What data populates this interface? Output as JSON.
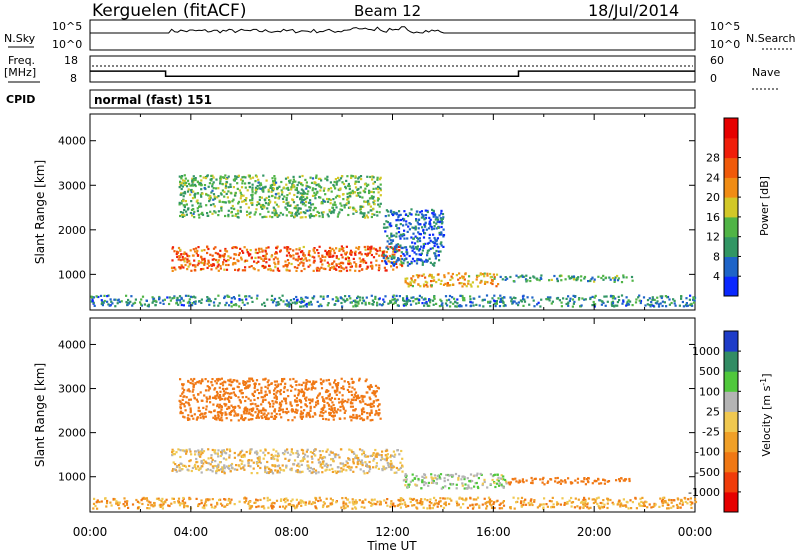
{
  "header": {
    "station": "Kerguelen (fitACF)",
    "beam": "Beam 12",
    "date": "18/Jul/2014"
  },
  "top_panels": {
    "nsky": {
      "label": "N.Sky",
      "ticks": [
        "10^5",
        "10^0"
      ]
    },
    "nsearch": {
      "label": "N.Search",
      "ticks": [
        "10^5",
        "10^0"
      ]
    },
    "freq": {
      "label_line1": "Freq.",
      "label_line2": "[MHz]",
      "ticks": [
        "18",
        "8"
      ],
      "values": [
        12.2,
        10.2,
        12.2
      ]
    },
    "nave": {
      "label": "Nave",
      "ticks": [
        "60",
        "0"
      ],
      "value": 34
    },
    "cpid": {
      "label": "CPID",
      "value": "normal (fast) 151"
    }
  },
  "chart_data": [
    {
      "type": "heatmap",
      "name": "power",
      "title": "",
      "xlabel": "Time UT",
      "ylabel": "Slant Range [km]",
      "xlim": [
        0,
        24
      ],
      "ylim": [
        200,
        4600
      ],
      "x_ticks": [
        "00:00",
        "04:00",
        "08:00",
        "12:00",
        "16:00",
        "20:00",
        "00:00"
      ],
      "y_ticks": [
        "1000",
        "2000",
        "3000",
        "4000"
      ],
      "colorbar": {
        "label": "Power [dB]",
        "ticks": [
          "4",
          "8",
          "12",
          "16",
          "20",
          "24",
          "28"
        ],
        "colors": [
          "#0a28ff",
          "#1e64c8",
          "#329664",
          "#50b446",
          "#d2c828",
          "#f08c14",
          "#f05a0a",
          "#f01e0a",
          "#e60000"
        ]
      },
      "regions": [
        {
          "t": [
            3.2,
            12.4
          ],
          "range": [
            1100,
            1650
          ],
          "level": 22
        },
        {
          "t": [
            12.4,
            16.2
          ],
          "range": [
            750,
            1050
          ],
          "level": 18
        },
        {
          "t": [
            16.2,
            21.5
          ],
          "range": [
            850,
            1000
          ],
          "level": 10
        },
        {
          "t": [
            3.5,
            11.5
          ],
          "range": [
            2300,
            3250
          ],
          "level": 12
        },
        {
          "t": [
            11.6,
            14.0
          ],
          "range": [
            1200,
            2500
          ],
          "level": 6
        },
        {
          "t": [
            0,
            24
          ],
          "range": [
            300,
            550
          ],
          "level": 8
        }
      ]
    },
    {
      "type": "heatmap",
      "name": "velocity",
      "title": "",
      "xlabel": "Time UT",
      "ylabel": "Slant Range [km]",
      "xlim": [
        0,
        24
      ],
      "ylim": [
        200,
        4600
      ],
      "x_ticks": [
        "00:00",
        "04:00",
        "08:00",
        "12:00",
        "16:00",
        "20:00",
        "00:00"
      ],
      "y_ticks": [
        "1000",
        "2000",
        "3000",
        "4000"
      ],
      "colorbar": {
        "label": "Velocity [m s^-1]",
        "ticks": [
          "1000",
          "500",
          "100",
          "25",
          "-25",
          "-100",
          "-500",
          "-1000"
        ],
        "colors": [
          "#1e3cc8",
          "#328c64",
          "#50c83c",
          "#b4b4b4",
          "#f0c850",
          "#f0a028",
          "#f07814",
          "#f03c0a",
          "#e60000"
        ]
      },
      "regions": [
        {
          "t": [
            3.2,
            12.4
          ],
          "range": [
            1100,
            1650
          ],
          "level": 0
        },
        {
          "t": [
            12.4,
            16.5
          ],
          "range": [
            750,
            1100
          ],
          "level": 80
        },
        {
          "t": [
            16.5,
            21.5
          ],
          "range": [
            850,
            1000
          ],
          "level": -400
        },
        {
          "t": [
            3.5,
            11.5
          ],
          "range": [
            2300,
            3250
          ],
          "level": -300
        },
        {
          "t": [
            0,
            24
          ],
          "range": [
            300,
            550
          ],
          "level": -60
        }
      ]
    }
  ]
}
